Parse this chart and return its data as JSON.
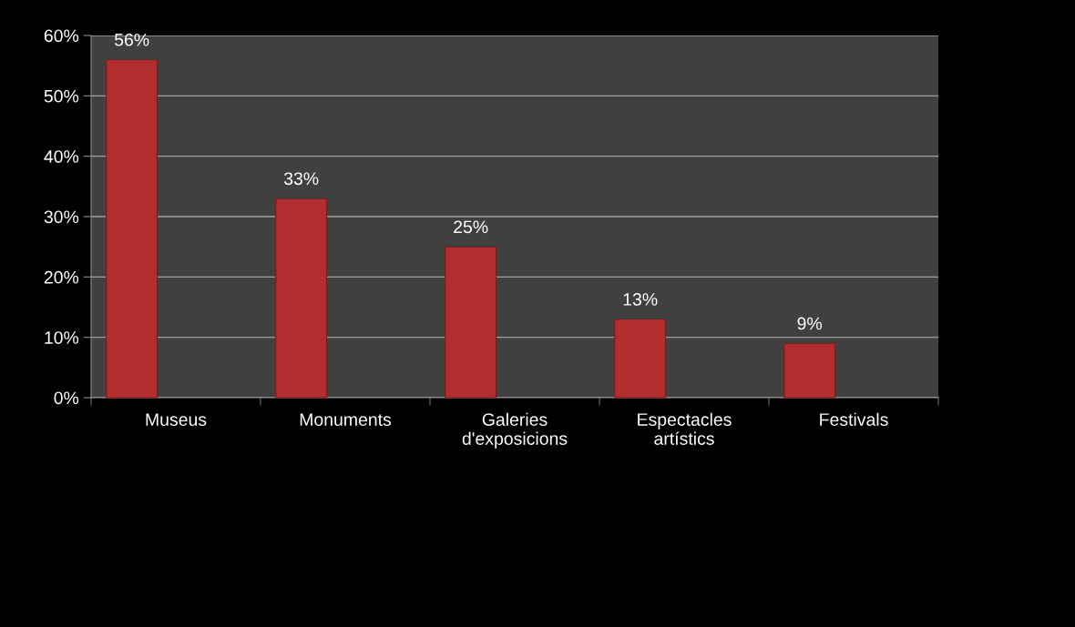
{
  "chart_data": {
    "type": "bar",
    "categories": [
      "Museus",
      "Monuments",
      "Galeries\nd'exposicions",
      "Espectacles\nartístics",
      "Festivals"
    ],
    "values": [
      56,
      33,
      25,
      13,
      9
    ],
    "value_labels": [
      "56%",
      "33%",
      "25%",
      "13%",
      "9%"
    ],
    "color": "#b22d2d",
    "ylim": [
      0,
      60
    ],
    "yticks": [
      {
        "value": 0,
        "label": "0%"
      },
      {
        "value": 10,
        "label": "10%"
      },
      {
        "value": 20,
        "label": "20%"
      },
      {
        "value": 30,
        "label": "30%"
      },
      {
        "value": 40,
        "label": "40%"
      },
      {
        "value": 50,
        "label": "50%"
      },
      {
        "value": 60,
        "label": "60%"
      }
    ],
    "grid": "y",
    "legend": false
  }
}
